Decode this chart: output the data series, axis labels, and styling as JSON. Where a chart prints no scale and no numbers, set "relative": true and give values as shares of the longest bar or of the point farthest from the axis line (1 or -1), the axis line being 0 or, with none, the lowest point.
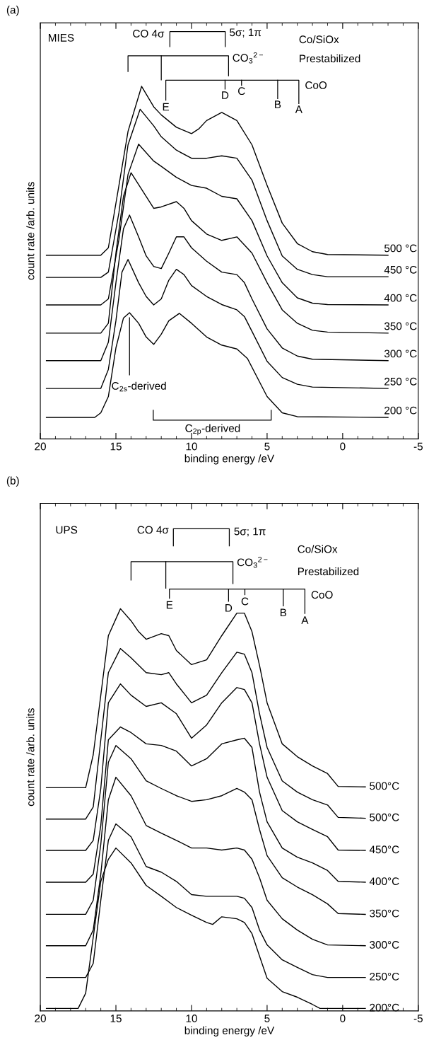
{
  "chart_data": [
    {
      "type": "line",
      "title": "(a)",
      "xlabel": "binding energy /eV",
      "ylabel": "count rate /arb. units",
      "relative": true,
      "tick_labels": "x",
      "xlim": [
        20,
        -5
      ],
      "xticks": [
        20,
        15,
        10,
        5,
        0,
        -5
      ],
      "annotations": [
        "MIES",
        "CO 4σ",
        "5σ; 1π",
        "CO$_{3}$$^{2−}$",
        "Co/SiOx",
        "Prestabilized",
        "CoO",
        "E",
        "D",
        "C",
        "B",
        "A",
        "C$_{2s}$-derived",
        "C$_{2p}$-derived"
      ],
      "series": [
        {
          "name": "500 °C",
          "color": "#000000",
          "x": [
            19.6,
            16,
            15.5,
            14.8,
            14.2,
            13.3,
            12.5,
            12,
            11,
            10,
            9.5,
            9,
            8,
            7,
            6,
            5,
            4,
            3,
            2,
            1,
            -3
          ],
          "values": [
            0.521,
            0.521,
            0.542,
            0.719,
            0.872,
            1.0,
            0.942,
            0.919,
            0.884,
            0.866,
            0.88,
            0.903,
            0.926,
            0.903,
            0.834,
            0.719,
            0.612,
            0.554,
            0.531,
            0.523,
            0.521
          ]
        },
        {
          "name": "450 °C",
          "color": "#000000",
          "x": [
            19.6,
            16,
            15.5,
            14.8,
            14.2,
            13.4,
            12.5,
            12,
            11,
            10,
            9,
            8,
            7,
            6,
            5,
            4,
            3,
            2,
            1,
            -3
          ],
          "values": [
            0.458,
            0.458,
            0.473,
            0.642,
            0.834,
            0.935,
            0.888,
            0.857,
            0.819,
            0.796,
            0.796,
            0.803,
            0.796,
            0.734,
            0.619,
            0.519,
            0.481,
            0.466,
            0.46,
            0.46
          ]
        },
        {
          "name": "400 °C",
          "color": "#000000",
          "x": [
            19.6,
            16,
            15.5,
            14.8,
            14.2,
            13.5,
            12.5,
            12,
            11,
            10,
            9,
            8,
            7,
            6,
            5,
            4,
            3,
            2,
            1,
            -3
          ],
          "values": [
            0.38,
            0.38,
            0.397,
            0.566,
            0.75,
            0.836,
            0.788,
            0.773,
            0.742,
            0.719,
            0.711,
            0.688,
            0.681,
            0.619,
            0.519,
            0.443,
            0.4,
            0.385,
            0.381,
            0.38
          ]
        },
        {
          "name": "350 °C",
          "color": "#000000",
          "x": [
            19.6,
            16,
            15.5,
            15,
            14.5,
            14,
            13,
            12.5,
            12,
            11,
            10.5,
            10,
            9,
            8,
            7,
            6,
            5,
            4,
            3,
            2,
            1,
            -3
          ],
          "values": [
            0.3,
            0.3,
            0.328,
            0.527,
            0.688,
            0.755,
            0.688,
            0.654,
            0.658,
            0.673,
            0.654,
            0.619,
            0.581,
            0.563,
            0.573,
            0.527,
            0.443,
            0.366,
            0.328,
            0.308,
            0.303,
            0.3
          ]
        },
        {
          "name": "300 °C",
          "color": "#000000",
          "x": [
            19.6,
            16,
            15.5,
            15,
            14.5,
            14.1,
            13.5,
            13,
            12.5,
            12,
            11.5,
            11,
            10.5,
            10,
            9,
            8,
            7,
            6.5,
            6,
            5,
            4,
            3,
            2,
            -3
          ],
          "values": [
            0.222,
            0.222,
            0.274,
            0.443,
            0.596,
            0.635,
            0.573,
            0.519,
            0.489,
            0.483,
            0.527,
            0.573,
            0.573,
            0.542,
            0.504,
            0.473,
            0.466,
            0.443,
            0.397,
            0.312,
            0.258,
            0.235,
            0.226,
            0.222
          ]
        },
        {
          "name": "250 °C",
          "color": "#000000",
          "x": [
            19.6,
            16,
            15.5,
            15,
            14.6,
            14.2,
            13.5,
            13,
            12.5,
            12,
            11.5,
            11,
            10.5,
            10,
            9,
            8,
            7,
            6.5,
            6,
            5,
            4,
            3,
            2,
            -3
          ],
          "values": [
            0.143,
            0.143,
            0.197,
            0.335,
            0.473,
            0.509,
            0.443,
            0.404,
            0.38,
            0.397,
            0.45,
            0.481,
            0.466,
            0.435,
            0.404,
            0.381,
            0.366,
            0.347,
            0.305,
            0.22,
            0.174,
            0.155,
            0.147,
            0.143
          ]
        },
        {
          "name": "200 °C",
          "color": "#000000",
          "x": [
            19.6,
            16.4,
            16,
            15.5,
            15,
            14.5,
            14.1,
            13.5,
            13,
            12.5,
            12,
            11.5,
            10.8,
            10,
            9,
            8,
            7,
            6.3,
            5,
            4,
            3,
            -3
          ],
          "values": [
            0.061,
            0.061,
            0.074,
            0.12,
            0.258,
            0.343,
            0.358,
            0.328,
            0.289,
            0.268,
            0.297,
            0.335,
            0.356,
            0.328,
            0.289,
            0.266,
            0.255,
            0.228,
            0.12,
            0.074,
            0.063,
            0.061
          ]
        }
      ]
    },
    {
      "type": "line",
      "title": "(b)",
      "xlabel": "binding energy /eV",
      "ylabel": "count rate /arb. units",
      "relative": true,
      "tick_labels": "x",
      "xlim": [
        20,
        -5
      ],
      "xticks": [
        20,
        15,
        10,
        5,
        0,
        -5
      ],
      "annotations": [
        "UPS",
        "CO 4σ",
        "5σ; 1π",
        "CO$_{3}$$^{2−}$",
        "Co/SiOx",
        "Prestabilized",
        "CoO",
        "E",
        "D",
        "C",
        "B",
        "A"
      ],
      "series": [
        {
          "name": "500°C",
          "color": "#000000",
          "x": [
            19.6,
            17,
            16.5,
            16,
            15.5,
            14.7,
            14,
            13.5,
            13,
            12,
            11.5,
            11,
            10,
            9,
            8,
            7,
            6.5,
            6,
            5.5,
            5,
            4,
            3,
            2,
            1,
            0.3,
            -1.5
          ],
          "values": [
            0.555,
            0.555,
            0.637,
            0.785,
            0.933,
            1.0,
            0.97,
            0.943,
            0.924,
            0.938,
            0.933,
            0.896,
            0.861,
            0.873,
            0.933,
            0.989,
            0.989,
            0.943,
            0.859,
            0.766,
            0.664,
            0.632,
            0.609,
            0.59,
            0.558,
            0.557
          ]
        },
        {
          "name": "500°C",
          "color": "#000000",
          "x": [
            19.6,
            17,
            16.5,
            16,
            15.5,
            14.7,
            14,
            13,
            12,
            11.5,
            11,
            10,
            9,
            8,
            7,
            6.5,
            6,
            5.5,
            5,
            4,
            3,
            2,
            1,
            0.3,
            -1.5
          ],
          "values": [
            0.477,
            0.477,
            0.507,
            0.674,
            0.841,
            0.901,
            0.878,
            0.841,
            0.836,
            0.841,
            0.813,
            0.766,
            0.785,
            0.841,
            0.892,
            0.887,
            0.841,
            0.739,
            0.655,
            0.572,
            0.544,
            0.525,
            0.512,
            0.481,
            0.479
          ]
        },
        {
          "name": "450°C",
          "color": "#000000",
          "x": [
            19.6,
            17,
            16.5,
            16,
            15.5,
            14.7,
            14,
            13,
            12,
            11,
            10,
            9,
            8,
            7,
            6.5,
            6,
            5.5,
            5,
            4,
            3,
            2,
            1,
            0.3,
            -1.5
          ],
          "values": [
            0.399,
            0.399,
            0.424,
            0.553,
            0.766,
            0.813,
            0.785,
            0.757,
            0.766,
            0.739,
            0.678,
            0.711,
            0.766,
            0.804,
            0.799,
            0.766,
            0.664,
            0.581,
            0.498,
            0.47,
            0.451,
            0.433,
            0.4,
            0.399
          ]
        },
        {
          "name": "400°C",
          "color": "#000000",
          "x": [
            19.6,
            17,
            16.5,
            16,
            15.5,
            14.7,
            14,
            13,
            12,
            11,
            10,
            9,
            8,
            7,
            6.5,
            6,
            5.5,
            5,
            4,
            3,
            2,
            1,
            0.3,
            -1.5
          ],
          "values": [
            0.32,
            0.32,
            0.34,
            0.461,
            0.674,
            0.706,
            0.692,
            0.664,
            0.66,
            0.646,
            0.609,
            0.627,
            0.664,
            0.674,
            0.678,
            0.655,
            0.544,
            0.47,
            0.405,
            0.382,
            0.368,
            0.349,
            0.322,
            0.32
          ]
        },
        {
          "name": "350°C",
          "color": "#000000",
          "x": [
            19.6,
            17,
            16.5,
            16,
            15.5,
            15,
            14,
            13,
            12,
            11,
            10,
            9,
            8,
            7,
            6.5,
            6,
            5.5,
            5,
            4,
            3,
            2,
            1,
            0.3,
            -1.5
          ],
          "values": [
            0.24,
            0.24,
            0.275,
            0.414,
            0.618,
            0.66,
            0.627,
            0.572,
            0.553,
            0.535,
            0.521,
            0.525,
            0.535,
            0.553,
            0.544,
            0.525,
            0.451,
            0.386,
            0.331,
            0.308,
            0.289,
            0.266,
            0.242,
            0.24
          ]
        },
        {
          "name": "300°C",
          "color": "#000000",
          "x": [
            19.6,
            17,
            16.5,
            16,
            15.5,
            15,
            14,
            13,
            12,
            11,
            10,
            9,
            8,
            7,
            6.5,
            6,
            5.5,
            5,
            4,
            3,
            2,
            1,
            -1.5
          ],
          "values": [
            0.162,
            0.162,
            0.201,
            0.34,
            0.525,
            0.581,
            0.535,
            0.461,
            0.442,
            0.424,
            0.405,
            0.405,
            0.4,
            0.405,
            0.4,
            0.377,
            0.331,
            0.275,
            0.229,
            0.201,
            0.178,
            0.164,
            0.162
          ]
        },
        {
          "name": "250°C",
          "color": "#000000",
          "x": [
            19.6,
            17,
            16.5,
            16,
            15.5,
            15,
            14,
            13,
            12,
            11,
            10,
            9,
            8,
            7,
            6.5,
            6,
            5.5,
            5,
            4,
            3,
            2,
            1,
            -1.5
          ],
          "values": [
            0.083,
            0.083,
            0.118,
            0.275,
            0.424,
            0.465,
            0.433,
            0.359,
            0.345,
            0.322,
            0.289,
            0.285,
            0.285,
            0.285,
            0.28,
            0.257,
            0.201,
            0.164,
            0.127,
            0.108,
            0.09,
            0.083,
            0.083
          ]
        },
        {
          "name": "200°C",
          "color": "#000000",
          "x": [
            19.6,
            17.5,
            17,
            16.5,
            16,
            15.5,
            15,
            14,
            13,
            12,
            11,
            10,
            9,
            8.6,
            8,
            7,
            6.5,
            6,
            5.5,
            5,
            4,
            3,
            2,
            1.5,
            -1.5
          ],
          "values": [
            0.006,
            0.006,
            0.044,
            0.183,
            0.322,
            0.377,
            0.405,
            0.368,
            0.312,
            0.285,
            0.257,
            0.238,
            0.22,
            0.215,
            0.234,
            0.229,
            0.22,
            0.192,
            0.136,
            0.081,
            0.048,
            0.034,
            0.016,
            0.006,
            0.006
          ]
        }
      ]
    }
  ]
}
